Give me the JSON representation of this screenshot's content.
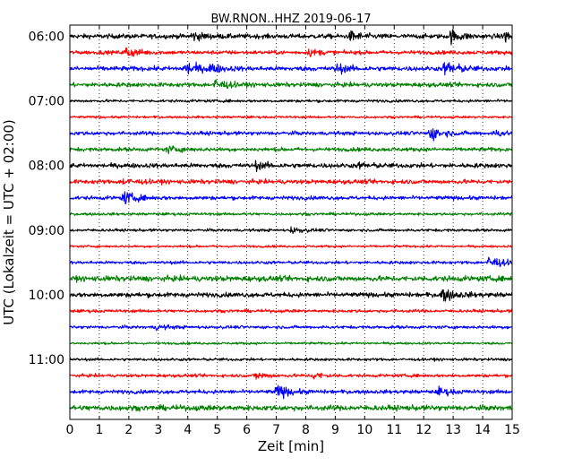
{
  "chart_data": {
    "type": "line",
    "subtype": "helicorder",
    "title": "BW.RNON..HHZ 2019-06-17",
    "xlabel": "Zeit  [min]",
    "ylabel": "UTC (Lokalzeit = UTC + 02:00)",
    "xlim": [
      0,
      15
    ],
    "x_ticks": [
      0,
      1,
      2,
      3,
      4,
      5,
      6,
      7,
      8,
      9,
      10,
      11,
      12,
      13,
      14,
      15
    ],
    "y_tick_labels": [
      "06:00",
      "07:00",
      "08:00",
      "09:00",
      "10:00",
      "11:00"
    ],
    "traces_per_hour": 4,
    "minutes_per_trace": 15,
    "grid": "vertical dotted at each minute",
    "trace_colors": [
      "#000000",
      "#ff0000",
      "#0000ff",
      "#008000"
    ],
    "traces": [
      {
        "start": "06:00",
        "amplitude": 0.3,
        "events": [
          [
            4.1,
            0.6
          ],
          [
            9.5,
            0.6
          ],
          [
            12.9,
            0.8
          ],
          [
            14.7,
            0.9
          ]
        ]
      },
      {
        "start": "06:15",
        "amplitude": 0.25,
        "events": [
          [
            1.9,
            0.7
          ],
          [
            8.1,
            0.4
          ]
        ]
      },
      {
        "start": "06:30",
        "amplitude": 0.3,
        "events": [
          [
            3.9,
            1.0
          ],
          [
            4.7,
            0.6
          ],
          [
            9.0,
            0.6
          ],
          [
            12.7,
            1.3
          ]
        ]
      },
      {
        "start": "06:45",
        "amplitude": 0.28,
        "events": [
          [
            4.9,
            0.8
          ]
        ]
      },
      {
        "start": "07:00",
        "amplitude": 0.18,
        "events": []
      },
      {
        "start": "07:15",
        "amplitude": 0.15,
        "events": []
      },
      {
        "start": "07:30",
        "amplitude": 0.25,
        "events": [
          [
            12.2,
            1.0
          ],
          [
            14.4,
            0.4
          ]
        ]
      },
      {
        "start": "07:45",
        "amplitude": 0.25,
        "events": [
          [
            3.3,
            0.4
          ]
        ]
      },
      {
        "start": "08:00",
        "amplitude": 0.3,
        "events": [
          [
            6.3,
            0.4
          ],
          [
            9.8,
            0.3
          ]
        ]
      },
      {
        "start": "08:15",
        "amplitude": 0.28,
        "events": [
          [
            1.8,
            0.4
          ]
        ]
      },
      {
        "start": "08:30",
        "amplitude": 0.25,
        "events": [
          [
            1.8,
            0.9
          ]
        ]
      },
      {
        "start": "08:45",
        "amplitude": 0.18,
        "events": []
      },
      {
        "start": "09:00",
        "amplitude": 0.18,
        "events": [
          [
            7.5,
            0.4
          ]
        ]
      },
      {
        "start": "09:15",
        "amplitude": 0.15,
        "events": []
      },
      {
        "start": "09:30",
        "amplitude": 0.2,
        "events": [
          [
            14.2,
            1.1
          ]
        ]
      },
      {
        "start": "09:45",
        "amplitude": 0.35,
        "events": []
      },
      {
        "start": "10:00",
        "amplitude": 0.3,
        "events": [
          [
            12.6,
            0.9
          ]
        ]
      },
      {
        "start": "10:15",
        "amplitude": 0.2,
        "events": []
      },
      {
        "start": "10:30",
        "amplitude": 0.2,
        "events": [
          [
            2.9,
            0.3
          ]
        ]
      },
      {
        "start": "10:45",
        "amplitude": 0.15,
        "events": []
      },
      {
        "start": "11:00",
        "amplitude": 0.18,
        "events": []
      },
      {
        "start": "11:15",
        "amplitude": 0.2,
        "events": [
          [
            6.3,
            0.5
          ],
          [
            8.2,
            0.5
          ]
        ]
      },
      {
        "start": "11:30",
        "amplitude": 0.25,
        "events": [
          [
            7.0,
            1.0
          ],
          [
            12.5,
            0.5
          ]
        ]
      },
      {
        "start": "11:45",
        "amplitude": 0.35,
        "events": []
      }
    ]
  }
}
